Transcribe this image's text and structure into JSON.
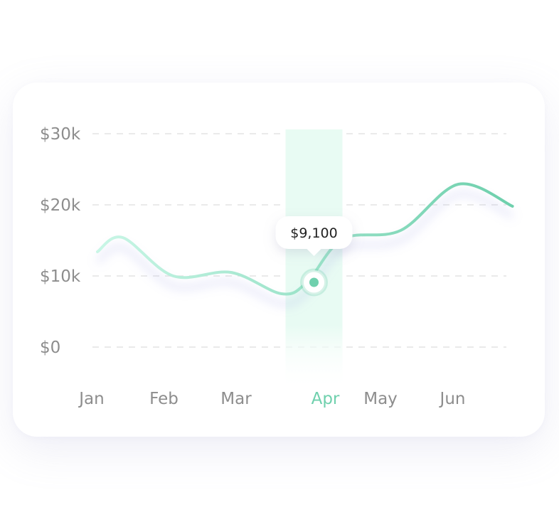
{
  "chart_data": {
    "type": "line",
    "categories": [
      "Jan",
      "Feb",
      "Mar",
      "Apr",
      "May",
      "Jun"
    ],
    "y_ticks": [
      "$0",
      "$10k",
      "$20k",
      "$30k"
    ],
    "ylim": [
      0,
      30000
    ],
    "grid": true,
    "series": [
      {
        "x": [
          0.0,
          0.35,
          1.05,
          1.85,
          2.55,
          2.9,
          3.4,
          4.2,
          5.0,
          5.75
        ],
        "values": [
          13400,
          15400,
          10000,
          10500,
          7500,
          9100,
          15200,
          16400,
          22900,
          19800
        ]
      }
    ],
    "highlight": {
      "category": "Apr",
      "label": "$9,100",
      "value": 9100
    },
    "colors": {
      "line_start": "#c9f6e6",
      "line_end": "#6fd0ad",
      "band": "#e8fbf3",
      "active_label": "#6fd0ad",
      "tick_label": "#8d8d8d",
      "grid": "#e4e4e4"
    }
  }
}
